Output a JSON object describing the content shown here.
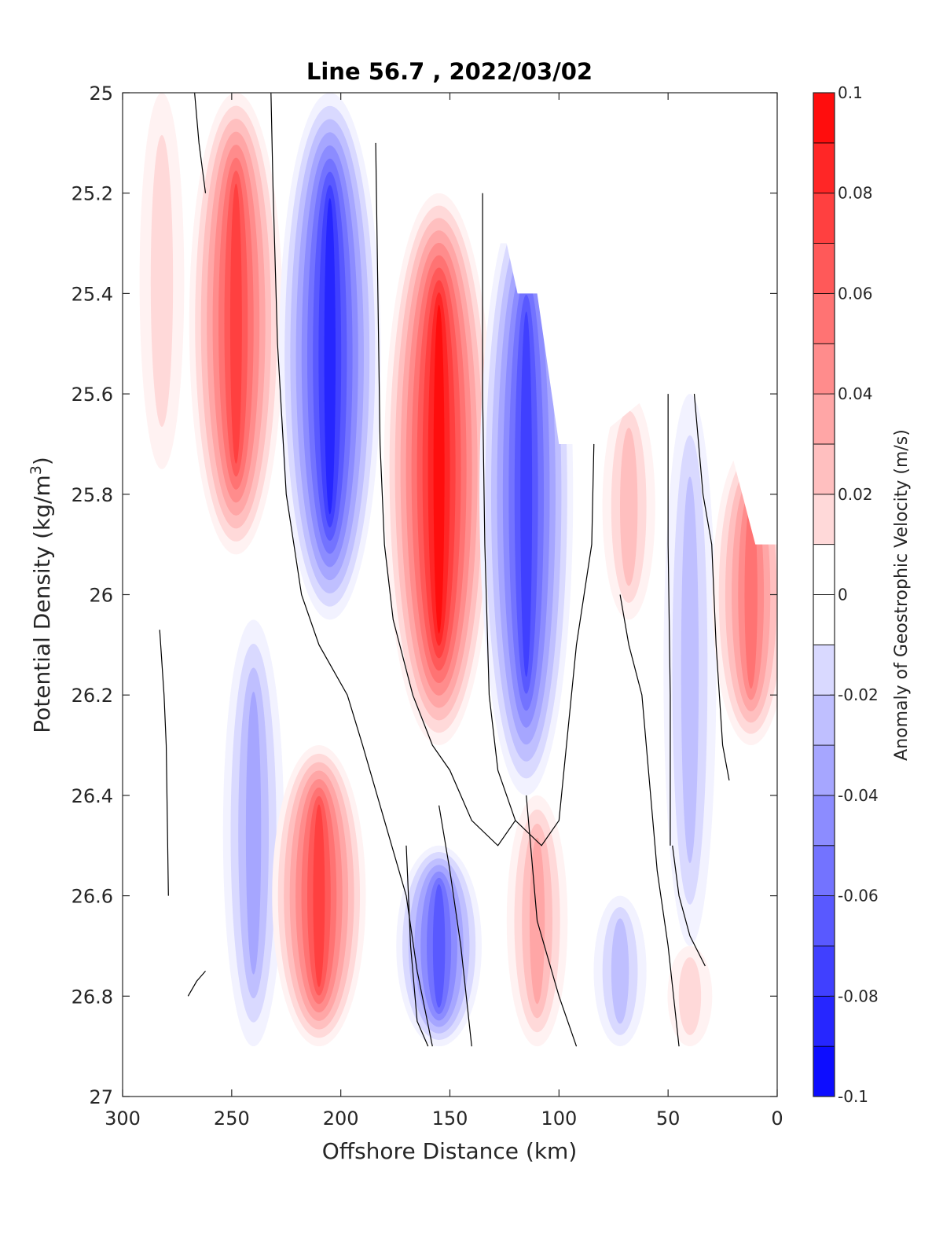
{
  "chart_data": {
    "type": "heatmap",
    "subtype": "filled-contour",
    "title": "Line 56.7 , 2022/03/02",
    "xlabel": "Offshore Distance (km)",
    "ylabel_main": "Potential Density (kg/m",
    "ylabel_sup": "3",
    "ylabel_close": ")",
    "xlim": [
      300,
      0
    ],
    "ylim": [
      25,
      27
    ],
    "y_reversed": true,
    "x_reversed": true,
    "x_ticks": [
      300,
      250,
      200,
      150,
      100,
      50,
      0
    ],
    "x_tick_labels": [
      "300",
      "250",
      "200",
      "150",
      "100",
      "50",
      "0"
    ],
    "y_ticks": [
      25,
      25.2,
      25.4,
      25.6,
      25.8,
      26,
      26.2,
      26.4,
      26.6,
      26.8,
      27
    ],
    "y_tick_labels": [
      "25",
      "25.2",
      "25.4",
      "25.6",
      "25.8",
      "26",
      "26.2",
      "26.4",
      "26.6",
      "26.8",
      "27"
    ],
    "grid": false,
    "colorbar": {
      "label": "Anomaly of Geostrophic Velocity (m/s)",
      "limits": [
        -0.1,
        0.1
      ],
      "levels": [
        -0.1,
        -0.09,
        -0.08,
        -0.07,
        -0.06,
        -0.05,
        -0.04,
        -0.03,
        -0.02,
        -0.01,
        0,
        0.01,
        0.02,
        0.03,
        0.04,
        0.05,
        0.06,
        0.07,
        0.08,
        0.09,
        0.1
      ],
      "tick_values": [
        0.1,
        0.08,
        0.06,
        0.04,
        0.02,
        0,
        -0.02,
        -0.04,
        -0.06,
        -0.08,
        -0.1
      ],
      "tick_labels": [
        "0.1",
        "0.08",
        "0.06",
        "0.04",
        "0.02",
        "0",
        "-0.02",
        "-0.04",
        "-0.06",
        "-0.08",
        "-0.1"
      ],
      "colormap": "blue-white-red",
      "negative_color": "#0000ff",
      "positive_color": "#ff0000",
      "zero_color": "#ffffff"
    },
    "zero_contour_color": "#000000",
    "features": [
      {
        "sign": "positive",
        "x_center": 282,
        "y_top": 25.0,
        "y_bottom": 25.75,
        "peak": 0.015
      },
      {
        "sign": "positive",
        "x_center": 248,
        "y_top": 25.0,
        "y_bottom": 25.92,
        "peak": 0.075
      },
      {
        "sign": "negative",
        "x_center": 205,
        "y_top": 25.0,
        "y_bottom": 26.05,
        "peak": -0.085
      },
      {
        "sign": "negative",
        "x_center": 240,
        "y_top": 26.05,
        "y_bottom": 26.9,
        "peak": -0.035
      },
      {
        "sign": "positive",
        "x_center": 155,
        "y_top": 25.2,
        "y_bottom": 26.3,
        "peak": 0.1
      },
      {
        "sign": "negative",
        "x_center": 115,
        "y_top": 25.2,
        "y_bottom": 26.4,
        "peak": -0.075
      },
      {
        "sign": "positive",
        "x_center": 210,
        "y_top": 26.3,
        "y_bottom": 26.9,
        "peak": 0.075
      },
      {
        "sign": "negative",
        "x_center": 155,
        "y_top": 26.5,
        "y_bottom": 26.9,
        "peak": -0.065
      },
      {
        "sign": "positive",
        "x_center": 110,
        "y_top": 26.4,
        "y_bottom": 26.9,
        "peak": 0.035
      },
      {
        "sign": "positive",
        "x_center": 68,
        "y_top": 25.6,
        "y_bottom": 26.05,
        "peak": 0.03
      },
      {
        "sign": "negative",
        "x_center": 72,
        "y_top": 26.6,
        "y_bottom": 26.9,
        "peak": -0.025
      },
      {
        "sign": "negative",
        "x_center": 40,
        "y_top": 25.6,
        "y_bottom": 26.7,
        "peak": -0.025
      },
      {
        "sign": "positive",
        "x_center": 12,
        "y_top": 25.7,
        "y_bottom": 26.3,
        "peak": 0.055
      },
      {
        "sign": "positive",
        "x_center": 40,
        "y_top": 26.7,
        "y_bottom": 26.9,
        "peak": 0.015
      }
    ]
  }
}
